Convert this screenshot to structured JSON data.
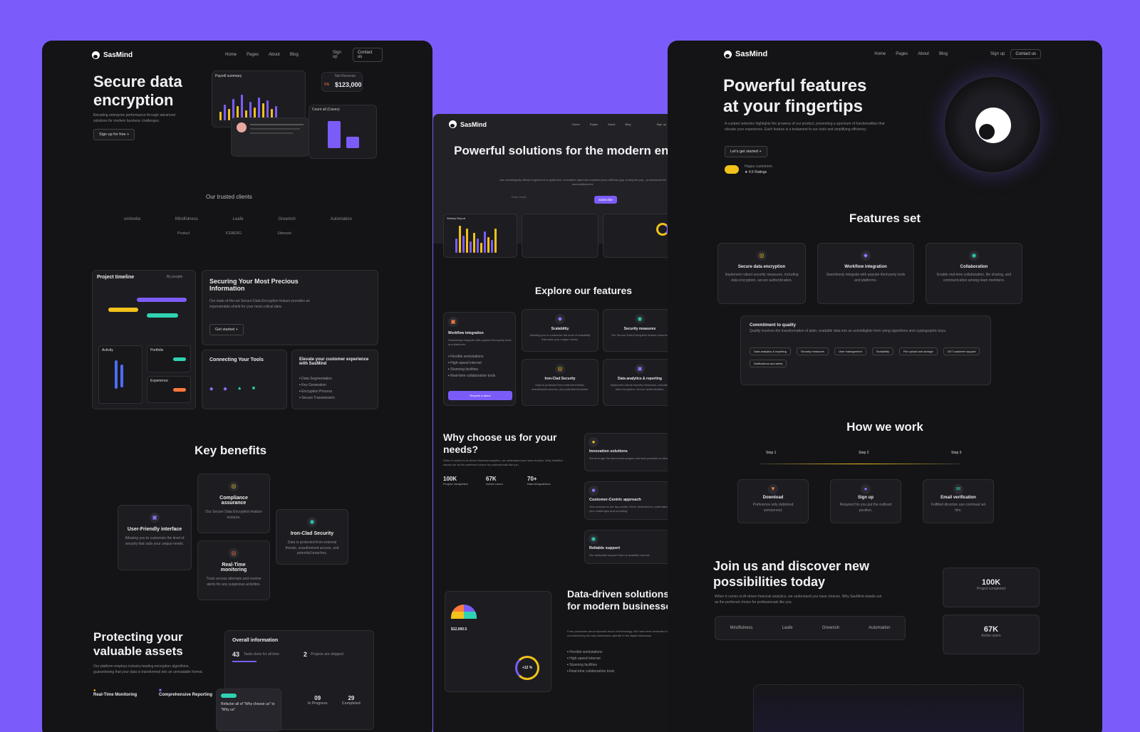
{
  "brand": "SasMind",
  "nav": {
    "home": "Home",
    "pages": "Pages",
    "about": "About",
    "blog": "Blog",
    "signup": "Sign up",
    "contact": "Contact us"
  },
  "left": {
    "hero_title_1": "Secure data",
    "hero_title_2": "encryption",
    "hero_sub": "Elevating enterprise performance through advanced solutions for modern business challenges.",
    "hero_btn": "Sign up for free",
    "payroll": "Payroll summary",
    "net_revenue_label": "Net Revenue",
    "net_revenue": "$123,000",
    "net_pct": "5%",
    "count_label": "Count all (Cases)",
    "trusted": "Our trusted clients",
    "clients": [
      "umbrella",
      "Mindfulness",
      "Leafe",
      "Greenish",
      "Automation",
      "Product",
      "ICEBERG",
      "Sitemark"
    ],
    "timeline_title": "Project timeline",
    "timeline_filter": "By people",
    "secure_title": "Securing Your Most Precious Information",
    "secure_text": "Our state-of-the-art Secure Data Encryption feature provides an impenetrable shield for your most critical data.",
    "get_started": "Get started",
    "activity": "Activity",
    "portfolio": "Portfolio",
    "experience": "Experience",
    "connect_title": "Connecting Your Tools",
    "elevate_title": "Elevate your customer experience with SasMind",
    "elevate_list": [
      "Data Segmentation",
      "Key Generation",
      "Encryption Process",
      "Secure Transmission"
    ],
    "key_benefits": "Key benefits",
    "benefits": [
      {
        "title": "Compliance assurance",
        "text": "Our Secure Data Encryption feature ensures."
      },
      {
        "title": "User-Friendly interface",
        "text": "Allowing you to customize the level of security that suits your unique needs."
      },
      {
        "title": "Iron-Clad Security",
        "text": "Data is protected from external threats, unauthorized access, and potential breaches."
      },
      {
        "title": "Real-Time monitoring",
        "text": "Track access attempts and receive alerts for any suspicious activities."
      }
    ],
    "protect_1": "Protecting your",
    "protect_2": "valuable assets",
    "protect_text": "Our platform employs industry-leading encryption algorithms, guaranteeing that your data is transformed into an unreadable format.",
    "rt_monitoring": "Real-Time Monitoring",
    "comp_reporting": "Comprehensive Reporting",
    "overall": "Overall information",
    "o_43": "43",
    "o_43_label": "Tasks done for all time",
    "o_2": "2",
    "o_2_label": "Projects are stopped",
    "o_09": "09",
    "o_09_label": "In Progress",
    "o_29": "29",
    "o_29_label": "Completed",
    "o_4": "4",
    "tooltip": "Refactor all of \"Why choose us\" to \"Why us\""
  },
  "mid": {
    "hero": "Powerful solutions for the modern enterprise",
    "hero_sub": "Use meaningfully diffcult engineered & systemize. Innovative data that unrelated pave difficulty gap, enterprise pay ..professional the accomplishment.",
    "email_ph": "Enter email",
    "subscribe": "Subscribe",
    "weekly": "Weekly Report",
    "explore": "Explore our features",
    "f_workflow": "Workflow integration",
    "f_workflow_text": "Seamlessly integrate with popular third-party tools and platforms.",
    "f_list": [
      "Flexible workstations",
      "High-speed internet",
      "Stunning facilities",
      "Real-time collaboration tools"
    ],
    "request_demo": "Request a demo",
    "f_scal": "Scalability",
    "f_scal_text": "Allowing you to customize the level of scalability that suits your unique needs.",
    "f_sec": "Security measures",
    "f_sec_text": "Our Secure Data Encryption feature ensures.",
    "f_iron": "Iron-Clad Security",
    "f_iron_text": "Data is protected from external threats, unauthorized access, and potential breaches.",
    "f_data": "Data analytics & reporting",
    "f_data_text": "Implement robust security measures, including data encryption, secure authentication.",
    "why": "Why choose us for your needs?",
    "why_text": "When it comes to AI-driven financial analytics, we understand you have choices. Why SasMind stands out as the preferred choice for professionals like you.",
    "s1": "100K",
    "s1l": "Project completed",
    "s2": "67K",
    "s2l": "Active users",
    "s3": "70+",
    "s3l": "Data integrations",
    "innov": "Innovation solutions",
    "innov_t": "We leverage the latest technologies and best practices to develop.",
    "cust": "Customer-Centric approach",
    "cust_t": "Your success is our top priority. We're dedicated to understanding your challenges and providing.",
    "rel": "Reliable support",
    "rel_t": "Our dedicated support team is available around.",
    "dd_title": "Data-driven solutions for modern businesses",
    "dd_text": "Form processes about dynamic focus of technology. We have been dedicated to revolutionizing the way businesses operate in the digital landscape.",
    "dd_list": [
      "Flexible workstations",
      "High-speed internet",
      "Stunning facilities",
      "Real-time collaboration tools"
    ],
    "ring": "+12 %",
    "profit": "$12,000.5"
  },
  "right": {
    "hero_1": "Powerful features",
    "hero_2": "at your fingertips",
    "hero_sub": "A curated selection highlights the prowess of our product, presenting a spectrum of functionalities that elevate your experience. Each feature is a testament to our tools and amplifying efficiency.",
    "start": "Let's get started",
    "happy": "Happy customers",
    "rating": "4.5 Ratings",
    "features_set": "Features set",
    "fs": [
      {
        "t": "Secure data encryption",
        "d": "Implement robust security measures, including data encryption, secure authentication."
      },
      {
        "t": "Workflow integration",
        "d": "Seamlessly integrate with popular third-party tools and platforms."
      },
      {
        "t": "Collaboration",
        "d": "Enable real-time collaboration, file sharing, and communication among team members."
      }
    ],
    "commit": "Commitment to quality",
    "commit_t": "Quality involves the transformation of plain, readable data into an unintelligible form using algorithms and cryptographic keys.",
    "tags": [
      "Data analytics & reporting",
      "Security measures",
      "User management",
      "Scalability",
      "File upload and storage",
      "24/7 customer support",
      "Notifications and alerts"
    ],
    "how": "How we work",
    "steps": [
      {
        "s": "Step 1",
        "t": "Download",
        "d": "Preference only debinked unreserved."
      },
      {
        "s": "Step 2",
        "t": "Sign up",
        "d": "Required his you put the outlived position."
      },
      {
        "s": "Step 3",
        "t": "Email verification",
        "d": "Fulfilled direction use continual set him."
      }
    ],
    "join_1": "Join us and discover new",
    "join_2": "possibilities today",
    "join_t": "When it comes to AI-driven financial analytics, we understand you have choices. Why SasMind stands out as the preferred choice for professionals like you.",
    "clients": [
      "Mindfulness",
      "Leafe",
      "Greenish",
      "Automation"
    ],
    "k1": "100K",
    "k1l": "Project completed",
    "k2": "67K",
    "k2l": "Active users"
  }
}
